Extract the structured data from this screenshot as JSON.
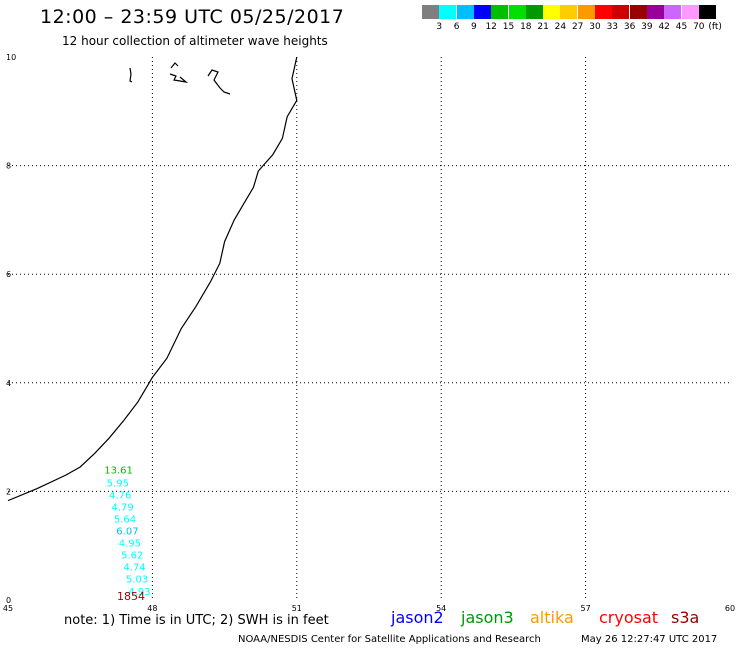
{
  "title": "12:00 – 23:59 UTC 05/25/2017",
  "subtitle": "12 hour collection of altimeter wave heights",
  "scale": {
    "colors": [
      "#7f7f7f",
      "#00ffff",
      "#00bfff",
      "#0000ff",
      "#00bf00",
      "#00df00",
      "#009900",
      "#ffff00",
      "#ffcc00",
      "#ff9900",
      "#ff0000",
      "#cc0000",
      "#990000",
      "#990099",
      "#cc66ff",
      "#ff99ff",
      "#000000"
    ],
    "labels": [
      "3",
      "6",
      "9",
      "12",
      "15",
      "18",
      "21",
      "24",
      "27",
      "30",
      "33",
      "36",
      "39",
      "42",
      "45",
      "70"
    ],
    "unit": "(ft)"
  },
  "axes": {
    "x_ticks": [
      "45",
      "48",
      "51",
      "54",
      "57",
      "60"
    ],
    "x_values": [
      45,
      48,
      51,
      54,
      57,
      60
    ],
    "y_ticks": [
      "0",
      "2",
      "4",
      "6",
      "8",
      "10"
    ],
    "y_values": [
      0,
      2,
      4,
      6,
      8,
      10
    ]
  },
  "coastline": [
    [
      45.0,
      1.83
    ],
    [
      45.6,
      2.05
    ],
    [
      46.2,
      2.3
    ],
    [
      46.5,
      2.45
    ],
    [
      46.8,
      2.7
    ],
    [
      47.1,
      2.98
    ],
    [
      47.4,
      3.3
    ],
    [
      47.7,
      3.65
    ],
    [
      48.0,
      4.1
    ],
    [
      48.3,
      4.45
    ],
    [
      48.6,
      5.0
    ],
    [
      48.9,
      5.4
    ],
    [
      49.2,
      5.85
    ],
    [
      49.4,
      6.2
    ],
    [
      49.5,
      6.6
    ],
    [
      49.7,
      7.0
    ],
    [
      49.9,
      7.3
    ],
    [
      50.1,
      7.6
    ],
    [
      50.2,
      7.9
    ],
    [
      50.5,
      8.2
    ],
    [
      50.7,
      8.5
    ],
    [
      50.8,
      8.9
    ],
    [
      51.0,
      9.2
    ],
    [
      50.9,
      9.6
    ],
    [
      51.0,
      10.0
    ]
  ],
  "islands": [
    {
      "name": "island-1",
      "points": [
        [
          44.1,
          9.9
        ],
        [
          44.2,
          9.6
        ]
      ]
    },
    {
      "name": "island-2",
      "points": [
        [
          44.9,
          9.95
        ],
        [
          45.2,
          9.85
        ],
        [
          45.5,
          9.7
        ]
      ]
    },
    {
      "name": "island-3",
      "points": [
        [
          46.1,
          9.9
        ],
        [
          46.3,
          9.7
        ],
        [
          46.8,
          9.6
        ]
      ]
    }
  ],
  "wave_heights": [
    {
      "value": "13.61",
      "color": "#00bf00",
      "x": 47.0,
      "y": 2.4
    },
    {
      "value": "5.95",
      "color": "#00ffff",
      "x": 47.05,
      "y": 2.16
    },
    {
      "value": "4.76",
      "color": "#00ffff",
      "x": 47.1,
      "y": 1.94
    },
    {
      "value": "4.79",
      "color": "#00ffff",
      "x": 47.15,
      "y": 1.72
    },
    {
      "value": "5.64",
      "color": "#00ffff",
      "x": 47.2,
      "y": 1.5
    },
    {
      "value": "6.07",
      "color": "#00bfff",
      "x": 47.25,
      "y": 1.28
    },
    {
      "value": "4.95",
      "color": "#00ffff",
      "x": 47.3,
      "y": 1.06
    },
    {
      "value": "5.62",
      "color": "#00ffff",
      "x": 47.35,
      "y": 0.84
    },
    {
      "value": "4.74",
      "color": "#00ffff",
      "x": 47.4,
      "y": 0.62
    },
    {
      "value": "5.03",
      "color": "#00ffff",
      "x": 47.45,
      "y": 0.4
    },
    {
      "value": "4.93",
      "color": "#00ffff",
      "x": 47.5,
      "y": 0.17
    }
  ],
  "time_label": {
    "text": "1854",
    "color": "#990000"
  },
  "note": "note: 1) Time is in UTC; 2) SWH is in feet",
  "satellites": [
    {
      "name": "jason2",
      "color": "#0000ff"
    },
    {
      "name": "jason3",
      "color": "#009900"
    },
    {
      "name": "altika",
      "color": "#ff9900"
    },
    {
      "name": "cryosat",
      "color": "#ff0000"
    },
    {
      "name": "s3a",
      "color": "#990000"
    }
  ],
  "credit_left": "NOAA/NESDIS Center for Satellite Applications and Research",
  "credit_right": "May 26 12:27:47 UTC 2017"
}
